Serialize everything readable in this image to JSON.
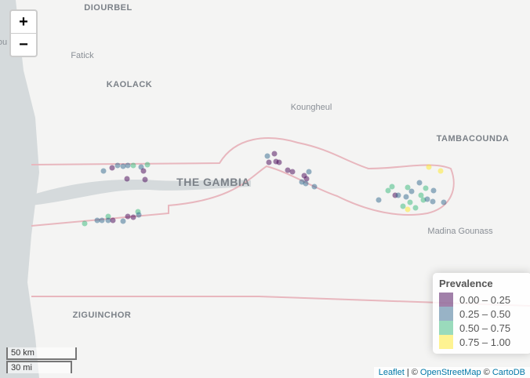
{
  "zoom": {
    "in": "+",
    "out": "−"
  },
  "places": {
    "diourbel": "DIOURBEL",
    "edge": "ou",
    "fatick": "Fatick",
    "kaolack": "KAOLACK",
    "koungheul": "Koungheul",
    "tambacounda": "TAMBACOUNDA",
    "gambia": "THE GAMBIA",
    "madina": "Madina Gounass",
    "ziguinchor": "ZIGUINCHOR"
  },
  "legend": {
    "title": "Prevalence",
    "entries": [
      {
        "label": "0.00 – 0.25",
        "color": "#440154"
      },
      {
        "label": "0.25 – 0.50",
        "color": "#31688e"
      },
      {
        "label": "0.50 – 0.75",
        "color": "#35b779"
      },
      {
        "label": "0.75 – 1.00",
        "color": "#fde725"
      }
    ]
  },
  "scale": {
    "km": "50 km",
    "mi": "30 mi"
  },
  "attribution": {
    "leaflet": "Leaflet",
    "sep": "| ©",
    "osm": "OpenStreetMap",
    "copy": "©",
    "carto": "CartoDB"
  }
}
